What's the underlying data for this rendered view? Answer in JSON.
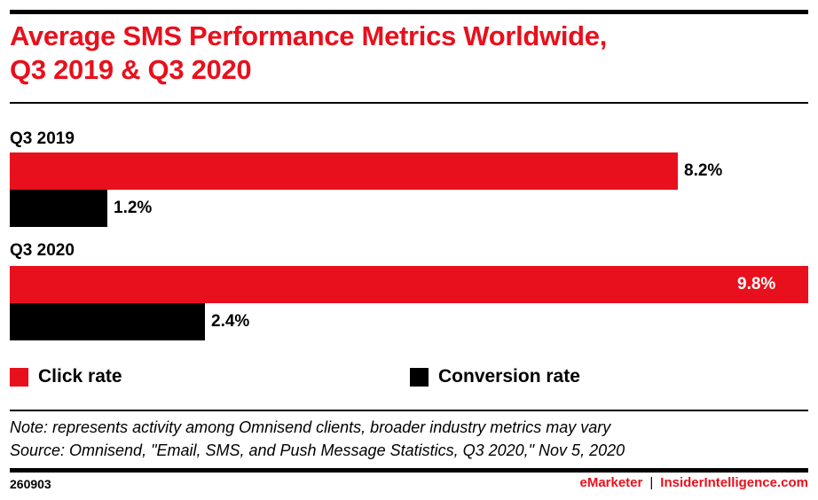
{
  "header": {
    "title_line1": "Average SMS Performance Metrics Worldwide,",
    "title_line2": "Q3 2019 & Q3 2020"
  },
  "colors": {
    "click_rate": "#e8101c",
    "conversion_rate": "#000000",
    "brand": "#e8101c"
  },
  "chart_data": {
    "type": "bar",
    "orientation": "horizontal",
    "title": "Average SMS Performance Metrics Worldwide, Q3 2019 & Q3 2020",
    "categories": [
      "Q3 2019",
      "Q3 2020"
    ],
    "series": [
      {
        "name": "Click rate",
        "values": [
          8.2,
          9.8
        ],
        "labels": [
          "8.2%",
          "9.8%"
        ]
      },
      {
        "name": "Conversion rate",
        "values": [
          1.2,
          2.4
        ],
        "labels": [
          "1.2%",
          "2.4%"
        ]
      }
    ],
    "unit": "%",
    "xlim": [
      0,
      9.8
    ],
    "grid": false,
    "legend": "bottom"
  },
  "legend": [
    {
      "label": "Click rate"
    },
    {
      "label": "Conversion rate"
    }
  ],
  "notes": {
    "note": "Note: represents activity among Omnisend clients, broader industry metrics may vary",
    "source": "Source: Omnisend, \"Email, SMS, and Push Message Statistics, Q3 2020,\" Nov 5, 2020"
  },
  "footer": {
    "chart_id": "260903",
    "brand1": "eMarketer",
    "separator": "|",
    "brand2": "InsiderIntelligence.com"
  }
}
